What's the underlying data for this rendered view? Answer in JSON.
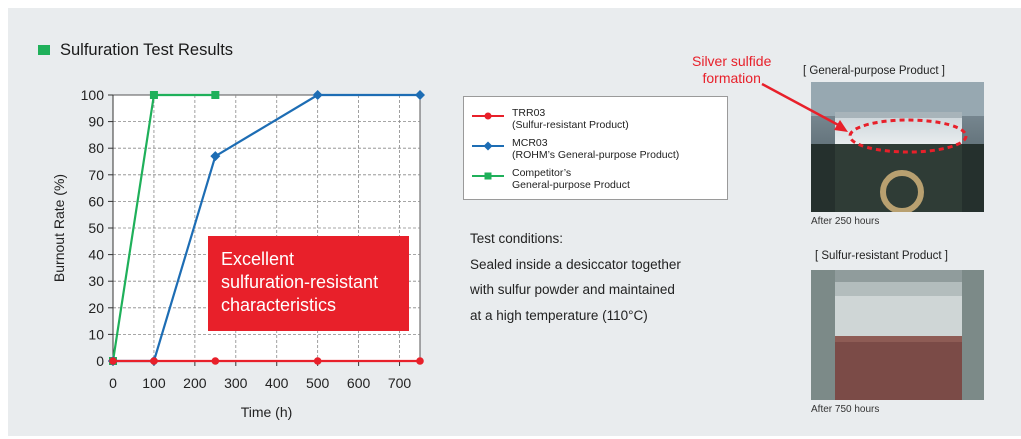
{
  "heading": {
    "text": "Sulfuration Test Results",
    "bullet_color": "#1fb05a"
  },
  "chart_data": {
    "type": "line",
    "xlabel": "Time (h)",
    "ylabel": "Burnout Rate (%)",
    "xlim": [
      0,
      750
    ],
    "ylim": [
      0,
      100
    ],
    "x_ticks": [
      0,
      100,
      200,
      300,
      400,
      500,
      600,
      700
    ],
    "y_ticks": [
      0,
      10,
      20,
      30,
      40,
      50,
      60,
      70,
      80,
      90,
      100
    ],
    "grid": true,
    "series": [
      {
        "name": "TRR03",
        "color": "#e8202a",
        "marker": "circle",
        "x": [
          0,
          100,
          250,
          500,
          750
        ],
        "y": [
          0,
          0,
          0,
          0,
          0
        ]
      },
      {
        "name": "MCR03",
        "color": "#1d6db4",
        "marker": "diamond",
        "x": [
          0,
          100,
          250,
          500,
          750
        ],
        "y": [
          0,
          0,
          77,
          100,
          100
        ]
      },
      {
        "name": "Competitor’s General-purpose Product",
        "color": "#1fb05a",
        "marker": "square",
        "x": [
          0,
          100,
          250
        ],
        "y": [
          0,
          100,
          100
        ]
      }
    ]
  },
  "callout": {
    "lines": [
      "Excellent",
      "sulfuration-resistant",
      "characteristics"
    ],
    "color": "#e8202a"
  },
  "legend": {
    "items": [
      {
        "lines": [
          "TRR03",
          "(Sulfur-resistant Product)"
        ],
        "color": "#e8202a",
        "marker": "circle"
      },
      {
        "lines": [
          "MCR03",
          "(ROHM’s General-purpose Product)"
        ],
        "color": "#1d6db4",
        "marker": "diamond"
      },
      {
        "lines": [
          "Competitor’s",
          "General-purpose Product"
        ],
        "color": "#1fb05a",
        "marker": "square"
      }
    ]
  },
  "conditions": {
    "title": "Test conditions:",
    "lines": [
      "Sealed inside a desiccator together",
      "with sulfur powder and maintained",
      "at a high temperature (110°C)"
    ]
  },
  "photos": {
    "annotation": [
      "Silver sulfide",
      "formation"
    ],
    "general": {
      "label": "[ General-purpose Product ]",
      "caption": "After 250 hours"
    },
    "resistant": {
      "label": "[ Sulfur-resistant Product ]",
      "caption": "After 750 hours"
    }
  }
}
